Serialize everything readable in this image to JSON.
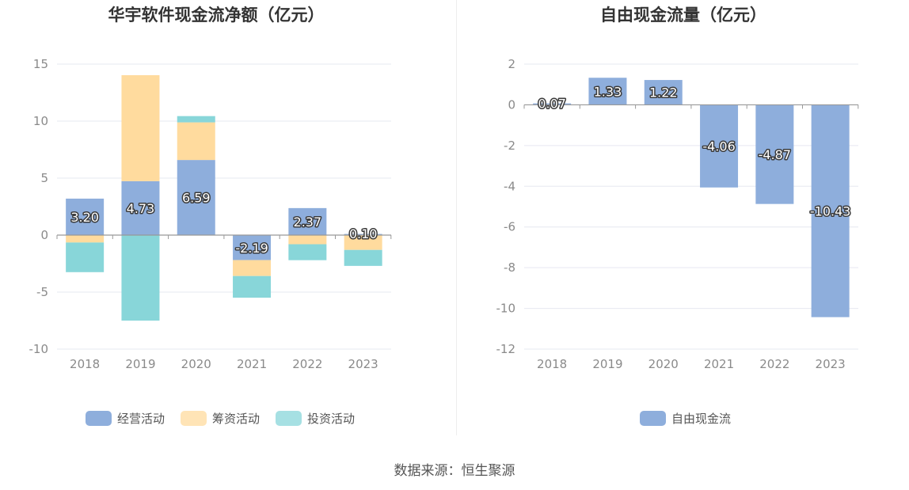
{
  "source_text": "数据来源：恒生聚源",
  "colors": {
    "operating": "#8eaedc",
    "financing": "#ffdb9e",
    "investing": "#88d6d9",
    "free_cash_flow": "#8eaedc",
    "axis_text": "#8a8a8a",
    "grid": "#e6e8f0",
    "title": "#333333"
  },
  "chart_data": [
    {
      "type": "bar",
      "stacked": true,
      "title": "华宇软件现金流净额（亿元）",
      "categories": [
        "2018",
        "2019",
        "2020",
        "2021",
        "2022",
        "2023"
      ],
      "ylim": [
        -10,
        15
      ],
      "yticks": [
        15,
        10,
        5,
        0,
        -5,
        -10
      ],
      "ytick_labels": [
        "15",
        "10",
        "5",
        "0",
        "-5",
        "-10"
      ],
      "grid": true,
      "legend_position": "bottom",
      "series": [
        {
          "name": "经营活动",
          "color_key": "operating",
          "values": [
            3.2,
            4.73,
            6.59,
            -2.19,
            2.37,
            0.1
          ],
          "labels": [
            "3.20",
            "4.73",
            "6.59",
            "-2.19",
            "2.37",
            "0.10"
          ]
        },
        {
          "name": "筹资活动",
          "color_key": "financing",
          "values": [
            -0.65,
            9.3,
            3.3,
            -1.4,
            -0.8,
            -1.3
          ],
          "labels": null
        },
        {
          "name": "投资活动",
          "color_key": "investing",
          "values": [
            -2.6,
            -7.5,
            0.55,
            -1.9,
            -1.4,
            -1.4
          ],
          "labels": null
        }
      ]
    },
    {
      "type": "bar",
      "stacked": false,
      "title": "自由现金流量（亿元）",
      "categories": [
        "2018",
        "2019",
        "2020",
        "2021",
        "2022",
        "2023"
      ],
      "ylim": [
        -12,
        2
      ],
      "yticks": [
        2,
        0,
        -2,
        -4,
        -6,
        -8,
        -10,
        -12
      ],
      "ytick_labels": [
        "2",
        "0",
        "-2",
        "-4",
        "-6",
        "-8",
        "-10",
        "-12"
      ],
      "grid": true,
      "legend_position": "bottom",
      "series": [
        {
          "name": "自由现金流",
          "color_key": "free_cash_flow",
          "values": [
            0.07,
            1.33,
            1.22,
            -4.06,
            -4.87,
            -10.43
          ],
          "labels": [
            "0.07",
            "1.33",
            "1.22",
            "-4.06",
            "-4.87",
            "-10.43"
          ]
        }
      ]
    }
  ]
}
